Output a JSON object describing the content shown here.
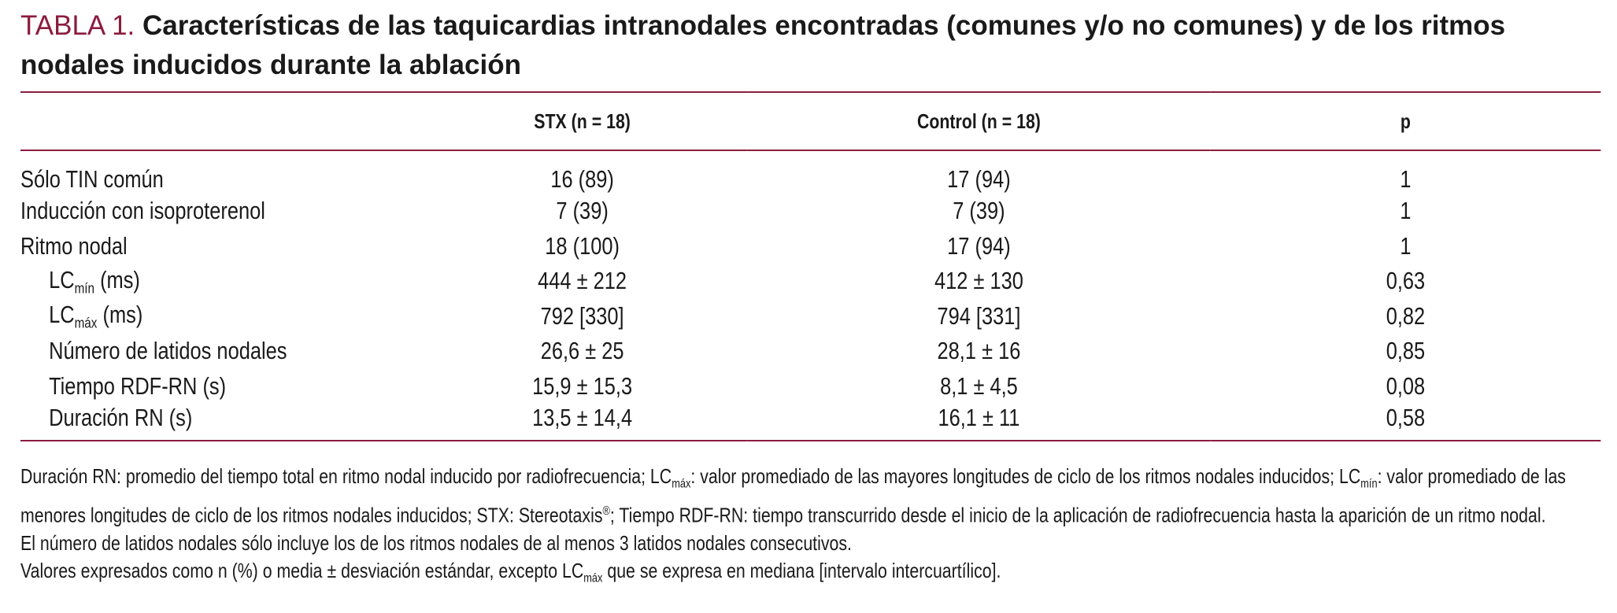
{
  "title": {
    "label": "TABLA 1.",
    "text": "Características de las taquicardias intranodales encontradas (comunes y/o no comunes) y de los ritmos nodales inducidos durante la ablación"
  },
  "table": {
    "columns": [
      "STX (n = 18)",
      "Control (n = 18)",
      "p"
    ],
    "rows": [
      {
        "label": "Sólo TIN común",
        "cells": [
          "16 (89)",
          "17 (94)",
          "1"
        ]
      },
      {
        "label": "Inducción con isoproterenol",
        "cells": [
          "7 (39)",
          "7 (39)",
          "1"
        ]
      },
      {
        "label": "Ritmo nodal",
        "cells": [
          "18 (100)",
          "17 (94)",
          "1"
        ]
      },
      {
        "label": "LC",
        "sub": "mín",
        "suffix": "(ms)",
        "indent": true,
        "cells": [
          "444 ± 212",
          "412 ± 130",
          "0,63"
        ]
      },
      {
        "label": "LC",
        "sub": "máx",
        "suffix": "(ms)",
        "indent": true,
        "cells": [
          "792 [330]",
          "794 [331]",
          "0,82"
        ]
      },
      {
        "label": "Número de latidos nodales",
        "indent": true,
        "cells": [
          "26,6 ± 25",
          "28,1 ± 16",
          "0,85"
        ]
      },
      {
        "label": "Tiempo RDF-RN (s)",
        "indent": true,
        "cells": [
          "15,9 ± 15,3",
          "8,1 ± 4,5",
          "0,08"
        ]
      },
      {
        "label": "Duración RN (s)",
        "indent": true,
        "cells": [
          "13,5 ± 14,4",
          "16,1 ± 11",
          "0,58"
        ]
      }
    ]
  },
  "notes": [
    [
      {
        "text": "Duración RN: promedio del tiempo total en ritmo nodal inducido por radiofrecuencia; LC"
      },
      {
        "sub": "máx"
      },
      {
        "text": ": valor promediado de las mayores longitudes de ciclo de los ritmos nodales inducidos; LC"
      },
      {
        "sub": "mín"
      },
      {
        "text": ": valor promediado de las menores longitudes de ciclo de los ritmos nodales inducidos; STX: Stereotaxis"
      },
      {
        "sup": "®"
      },
      {
        "text": "; Tiempo RDF-RN: tiempo transcurrido desde el inicio de la aplicación de radiofrecuencia hasta la aparición de un ritmo nodal."
      }
    ],
    [
      {
        "text": "El número de latidos nodales sólo incluye los de los ritmos nodales de al menos 3 latidos nodales consecutivos."
      }
    ],
    [
      {
        "text": "Valores expresados como n (%) o media ± desviación estándar, excepto LC"
      },
      {
        "sub": "máx"
      },
      {
        "text": " que se expresa en mediana [intervalo intercuartílico]."
      }
    ]
  ]
}
